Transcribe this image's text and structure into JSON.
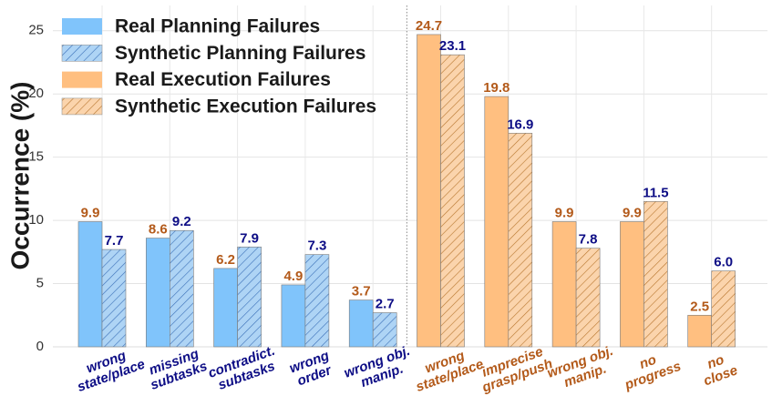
{
  "chart_data": {
    "type": "bar",
    "title": "",
    "xlabel": "",
    "ylabel": "Occurrence (%)",
    "ylim": [
      0,
      27
    ],
    "yticks": [
      0,
      5,
      10,
      15,
      20,
      25
    ],
    "grid": true,
    "legend_position": "top-left",
    "groups": [
      {
        "name": "Planning",
        "label_color": "#0d0d85",
        "categories": [
          {
            "label": [
              "wrong",
              "state/place"
            ],
            "real": 9.9,
            "synthetic": 7.7
          },
          {
            "label": [
              "missing",
              "subtasks"
            ],
            "real": 8.6,
            "synthetic": 9.2
          },
          {
            "label": [
              "contradict.",
              "subtasks"
            ],
            "real": 6.2,
            "synthetic": 7.9
          },
          {
            "label": [
              "wrong",
              "order"
            ],
            "real": 4.9,
            "synthetic": 7.3
          },
          {
            "label": [
              "wrong obj.",
              "manip."
            ],
            "real": 3.7,
            "synthetic": 2.7
          }
        ]
      },
      {
        "name": "Execution",
        "label_color": "#b35a1a",
        "categories": [
          {
            "label": [
              "wrong",
              "state/place"
            ],
            "real": 24.7,
            "synthetic": 23.1
          },
          {
            "label": [
              "imprecise",
              "grasp/push"
            ],
            "real": 19.8,
            "synthetic": 16.9
          },
          {
            "label": [
              "wrong obj.",
              "manip."
            ],
            "real": 9.9,
            "synthetic": 7.8
          },
          {
            "label": [
              "no",
              "progress"
            ],
            "real": 9.9,
            "synthetic": 11.5
          },
          {
            "label": [
              "no",
              "close"
            ],
            "real": 2.5,
            "synthetic": 6.0
          }
        ]
      }
    ],
    "series": [
      {
        "name": "Real Planning Failures",
        "color": "#80c4fb",
        "hatch": false
      },
      {
        "name": "Synthetic Planning Failures",
        "color": "#aed4f5",
        "hatch": true
      },
      {
        "name": "Real Execution Failures",
        "color": "#ffbf80",
        "hatch": false
      },
      {
        "name": "Synthetic Execution Failures",
        "color": "#fbd4ac",
        "hatch": true
      }
    ],
    "colors": {
      "real_label": "#b35a1a",
      "synthetic_label": "#0d0d85",
      "planning_hatch": "#3a6fb8",
      "execution_hatch": "#b8762e"
    }
  }
}
